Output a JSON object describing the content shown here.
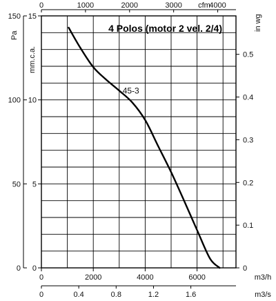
{
  "chart_data": {
    "type": "line",
    "title": "4 Polos (motor 2 vel. 2/4)",
    "grid": true,
    "x_primary": {
      "unit": "m3/h",
      "range": [
        0,
        7500
      ],
      "ticks": [
        0,
        2000,
        4000,
        6000
      ]
    },
    "x_secondary_bottom": {
      "unit": "m3/s",
      "range": [
        0,
        2.083
      ],
      "ticks": [
        "0",
        "0.4",
        "0.8",
        "1.2",
        "1.6"
      ],
      "tick_values": [
        0,
        0.4,
        0.8,
        1.2,
        1.6
      ]
    },
    "x_top": {
      "unit": "cfm",
      "range": [
        0,
        4414
      ],
      "ticks": [
        0,
        1000,
        2000,
        3000,
        4000
      ]
    },
    "y_left_outer": {
      "unit": "Pa",
      "range": [
        0,
        150
      ],
      "ticks": [
        0,
        50,
        100,
        150
      ]
    },
    "y_left_inner": {
      "unit": "mm.c.a.",
      "range": [
        0,
        15
      ],
      "ticks": [
        0,
        5,
        10,
        15
      ]
    },
    "y_right": {
      "unit": "in wg",
      "range": [
        0,
        0.59
      ],
      "ticks": [
        "0",
        "0.1",
        "0.2",
        "0.3",
        "0.4",
        "0.5"
      ],
      "tick_values": [
        0,
        0.1,
        0.2,
        0.3,
        0.4,
        0.5
      ]
    },
    "series": [
      {
        "name": "45-3",
        "color": "#000000",
        "x": [
          1050,
          1500,
          2000,
          2500,
          3000,
          3500,
          4000,
          4500,
          5000,
          5500,
          6000,
          6500,
          6870
        ],
        "y": [
          14.3,
          13.1,
          11.95,
          11.2,
          10.55,
          9.85,
          8.8,
          7.25,
          5.7,
          4.0,
          2.25,
          0.55,
          0.0
        ]
      }
    ]
  }
}
